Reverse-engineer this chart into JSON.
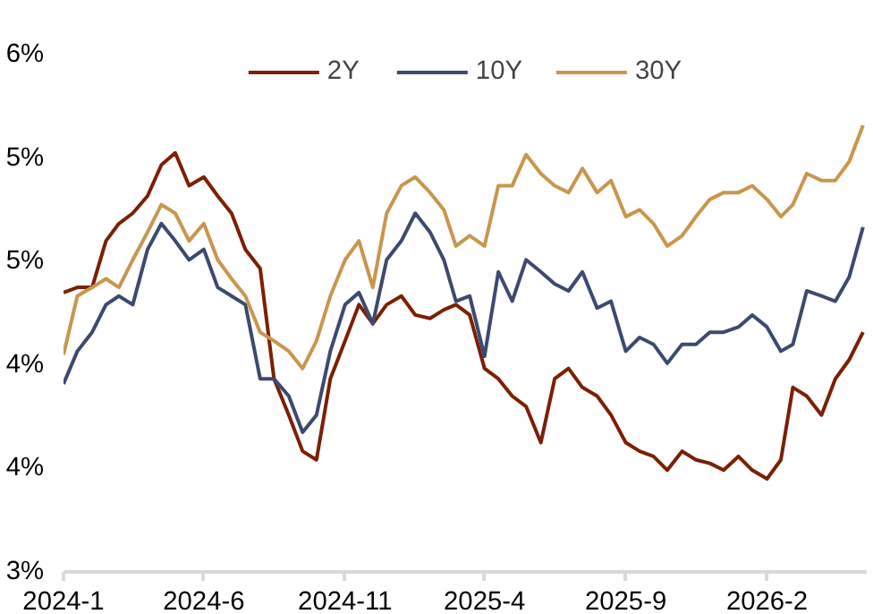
{
  "chart_data": {
    "type": "line",
    "x": [
      "2024-01-01",
      "2024-01-16",
      "2024-02-01",
      "2024-02-16",
      "2024-03-01",
      "2024-03-16",
      "2024-04-01",
      "2024-04-16",
      "2024-05-01",
      "2024-05-16",
      "2024-06-01",
      "2024-06-16",
      "2024-07-01",
      "2024-07-16",
      "2024-08-01",
      "2024-08-16",
      "2024-09-01",
      "2024-09-16",
      "2024-10-01",
      "2024-10-16",
      "2024-11-01",
      "2024-11-16",
      "2024-12-01",
      "2024-12-16",
      "2025-01-01",
      "2025-01-16",
      "2025-02-01",
      "2025-02-16",
      "2025-03-01",
      "2025-03-16",
      "2025-04-01",
      "2025-04-16",
      "2025-05-01",
      "2025-05-16",
      "2025-06-01",
      "2025-06-16",
      "2025-07-01",
      "2025-07-16",
      "2025-08-01",
      "2025-08-16",
      "2025-09-01",
      "2025-09-16",
      "2025-10-01",
      "2025-10-16",
      "2025-11-01",
      "2025-11-16",
      "2025-12-01",
      "2025-12-16",
      "2026-01-01",
      "2026-01-16",
      "2026-02-01",
      "2026-02-16",
      "2026-03-01",
      "2026-03-16",
      "2026-04-01",
      "2026-04-16",
      "2026-05-01",
      "2026-05-16"
    ],
    "series": [
      {
        "name": "2Y",
        "color": "#7b2005",
        "values": [
          4.62,
          4.65,
          4.65,
          4.92,
          5.02,
          5.08,
          5.18,
          5.36,
          5.43,
          5.24,
          5.29,
          5.18,
          5.08,
          4.87,
          4.76,
          4.12,
          3.91,
          3.7,
          3.65,
          4.12,
          4.34,
          4.55,
          4.44,
          4.55,
          4.6,
          4.49,
          4.47,
          4.52,
          4.55,
          4.49,
          4.18,
          4.12,
          4.02,
          3.96,
          3.75,
          4.12,
          4.18,
          4.07,
          4.02,
          3.91,
          3.75,
          3.7,
          3.67,
          3.59,
          3.7,
          3.65,
          3.63,
          3.59,
          3.67,
          3.59,
          3.54,
          3.65,
          4.07,
          4.02,
          3.91,
          4.12,
          4.23,
          4.39
        ]
      },
      {
        "name": "10Y",
        "color": "#3d4a6e",
        "values": [
          4.09,
          4.28,
          4.39,
          4.55,
          4.6,
          4.55,
          4.87,
          5.02,
          4.92,
          4.81,
          4.87,
          4.65,
          4.6,
          4.55,
          4.12,
          4.12,
          4.02,
          3.81,
          3.91,
          4.28,
          4.55,
          4.62,
          4.44,
          4.81,
          4.92,
          5.08,
          4.97,
          4.81,
          4.57,
          4.6,
          4.25,
          4.74,
          4.57,
          4.81,
          4.74,
          4.67,
          4.63,
          4.74,
          4.53,
          4.57,
          4.28,
          4.36,
          4.32,
          4.21,
          4.32,
          4.32,
          4.39,
          4.39,
          4.42,
          4.49,
          4.42,
          4.28,
          4.32,
          4.63,
          4.6,
          4.57,
          4.71,
          5.0
        ]
      },
      {
        "name": "30Y",
        "color": "#c8964e",
        "values": [
          4.26,
          4.6,
          4.65,
          4.7,
          4.65,
          4.81,
          4.97,
          5.13,
          5.08,
          4.92,
          5.02,
          4.81,
          4.7,
          4.6,
          4.39,
          4.34,
          4.28,
          4.18,
          4.34,
          4.6,
          4.81,
          4.92,
          4.65,
          5.08,
          5.24,
          5.29,
          5.2,
          5.1,
          4.89,
          4.95,
          4.89,
          5.24,
          5.24,
          5.42,
          5.31,
          5.24,
          5.2,
          5.34,
          5.2,
          5.27,
          5.06,
          5.1,
          5.02,
          4.89,
          4.95,
          5.06,
          5.16,
          5.2,
          5.2,
          5.24,
          5.16,
          5.06,
          5.13,
          5.31,
          5.27,
          5.27,
          5.38,
          5.59
        ]
      }
    ],
    "xlim": [
      "2024-01-01",
      "2026-05-20"
    ],
    "xticks": [
      {
        "value": "2024-01-01",
        "label": "2024-1"
      },
      {
        "value": "2024-06-01",
        "label": "2024-6"
      },
      {
        "value": "2024-11-01",
        "label": "2024-11"
      },
      {
        "value": "2025-04-01",
        "label": "2025-4"
      },
      {
        "value": "2025-09-01",
        "label": "2025-9"
      },
      {
        "value": "2026-02-01",
        "label": "2026-2"
      }
    ],
    "ylim": [
      3.0,
      6.0
    ],
    "yticks": [
      {
        "value": 3.0,
        "label": "3%"
      },
      {
        "value": 3.6,
        "label": "4%"
      },
      {
        "value": 4.2,
        "label": "4%"
      },
      {
        "value": 4.8,
        "label": "5%"
      },
      {
        "value": 5.4,
        "label": "5%"
      },
      {
        "value": 6.0,
        "label": "6%"
      }
    ],
    "grid": false,
    "legend": "top",
    "marker": "none",
    "line_style": "solid"
  }
}
